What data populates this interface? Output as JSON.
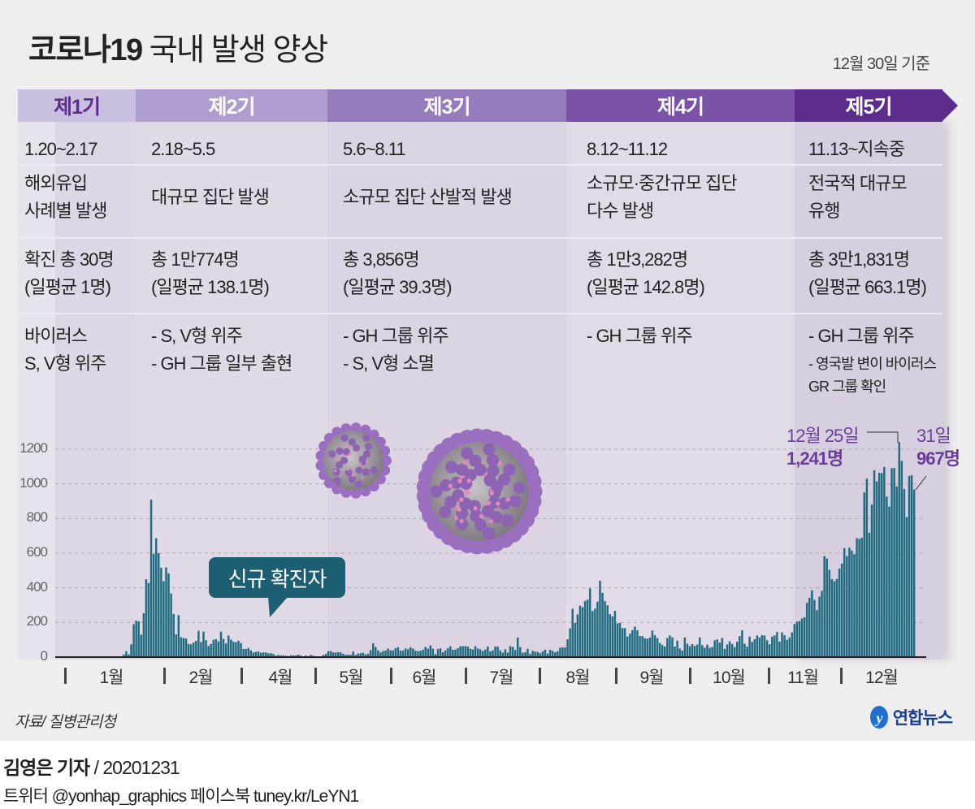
{
  "header": {
    "title_bold": "코로나19",
    "title_rest": " 국내 발생 양상",
    "basis": "12월 30일 기준"
  },
  "colors": {
    "phase1": "#cbbfe0",
    "phase2": "#b09dcf",
    "phase3": "#977cbd",
    "phase4": "#7a53a8",
    "phase5": "#5d2d8d",
    "bar": "#1f6b80",
    "annotation": "#6a3d9a",
    "callout": "#1c5e72"
  },
  "phases": [
    {
      "label": "제1기",
      "period": "1.20~2.17",
      "desc": [
        "해외유입",
        "사례별 발생"
      ],
      "total": "확진 총 30명",
      "avg": "(일평균 1명)",
      "virus": [
        "바이러스",
        "S, V형 위주"
      ]
    },
    {
      "label": "제2기",
      "period": "2.18~5.5",
      "desc": [
        "대규모 집단 발생"
      ],
      "total": "총 1만774명",
      "avg": "(일평균 138.1명)",
      "virus": [
        "- S, V형 위주",
        "- GH 그룹 일부 출현"
      ]
    },
    {
      "label": "제3기",
      "period": "5.6~8.11",
      "desc": [
        "소규모 집단 산발적 발생"
      ],
      "total": "총 3,856명",
      "avg": "(일평균 39.3명)",
      "virus": [
        "- GH 그룹 위주",
        "- S, V형 소멸"
      ]
    },
    {
      "label": "제4기",
      "period": "8.12~11.12",
      "desc": [
        "소규모·중간규모 집단",
        "다수 발생"
      ],
      "total": "총 1만3,282명",
      "avg": "(일평균 142.8명)",
      "virus": [
        "- GH 그룹 위주"
      ]
    },
    {
      "label": "제5기",
      "period": "11.13~지속중",
      "desc": [
        "전국적 대규모",
        "유행"
      ],
      "total": "총 3만1,831명",
      "avg": "(일평균 663.1명)",
      "virus": [
        "- GH 그룹 위주"
      ],
      "virus_note": [
        "- 영국발 변이 바이러스",
        "GR 그룹 확인"
      ]
    }
  ],
  "chart_data": {
    "type": "bar",
    "title": "신규 확진자",
    "ylim": [
      0,
      1300
    ],
    "yticks": [
      "0",
      "200",
      "400",
      "600",
      "800",
      "1000",
      "1200"
    ],
    "month_labels": [
      "1월",
      "2월",
      "4월",
      "5월",
      "6월",
      "7월",
      "8월",
      "9월",
      "10월",
      "11월",
      "12월"
    ],
    "grid": true,
    "annotations": [
      {
        "date": "12월 25일",
        "value": "1,241명"
      },
      {
        "date": "31일",
        "value": "967명"
      }
    ],
    "values": [
      1,
      15,
      34,
      16,
      74,
      190,
      210,
      207,
      130,
      253,
      449,
      427,
      909,
      595,
      686,
      600,
      516,
      438,
      518,
      483,
      367,
      248,
      131,
      242,
      114,
      110,
      107,
      76,
      74,
      84,
      93,
      152,
      87,
      147,
      98,
      64,
      76,
      100,
      104,
      91,
      146,
      105,
      78,
      125,
      101,
      89,
      86,
      94,
      81,
      47,
      47,
      53,
      39,
      27,
      30,
      32,
      25,
      27,
      27,
      22,
      22,
      18,
      8,
      13,
      9,
      11,
      8,
      6,
      10,
      10,
      10,
      14,
      9,
      4,
      9,
      6,
      13,
      8,
      3,
      2,
      4,
      12,
      18,
      34,
      35,
      27,
      26,
      29,
      27,
      19,
      13,
      15,
      13,
      32,
      12,
      20,
      23,
      25,
      16,
      19,
      40,
      79,
      58,
      39,
      27,
      35,
      38,
      49,
      39,
      39,
      51,
      57,
      38,
      38,
      50,
      45,
      56,
      49,
      37,
      34,
      37,
      43,
      59,
      49,
      67,
      48,
      17,
      46,
      51,
      28,
      39,
      51,
      62,
      42,
      43,
      51,
      63,
      63,
      63,
      61,
      48,
      44,
      63,
      50,
      45,
      35,
      44,
      62,
      33,
      39,
      61,
      60,
      39,
      26,
      45,
      26,
      63,
      59,
      41,
      113,
      58,
      25,
      28,
      48,
      18,
      36,
      31,
      30,
      23,
      33,
      43,
      20,
      43,
      36,
      28,
      34,
      54,
      56,
      56,
      103,
      166,
      279,
      197,
      246,
      297,
      288,
      324,
      332,
      397,
      266,
      280,
      320,
      441,
      371,
      323,
      299,
      248,
      235,
      267,
      195,
      198,
      168,
      167,
      119,
      136,
      156,
      176,
      155,
      121,
      121,
      109,
      106,
      113,
      153,
      126,
      110,
      82,
      70,
      61,
      110,
      125,
      114,
      61,
      95,
      50,
      38,
      113,
      77,
      63,
      75,
      64,
      73,
      114,
      69,
      54,
      72,
      54,
      58,
      97,
      102,
      84,
      110,
      47,
      73,
      91,
      76,
      58,
      89,
      121,
      155,
      77,
      61,
      119,
      88,
      103,
      125,
      114,
      127,
      124,
      97,
      75,
      118,
      125,
      145,
      89,
      143,
      126,
      100,
      113,
      143,
      191,
      205,
      208,
      223,
      230,
      313,
      343,
      386,
      330,
      271,
      349,
      382,
      583,
      569,
      504,
      450,
      438,
      451,
      511,
      540,
      629,
      583,
      631,
      615,
      594,
      686,
      682,
      689,
      950,
      1030,
      718,
      880,
      1078,
      1014,
      1064,
      1062,
      1097,
      926,
      869,
      1090,
      1092,
      985,
      1241,
      1132,
      970,
      808,
      1046,
      1050,
      967
    ]
  },
  "footer": {
    "source": "자료/ 질병관리청",
    "logo": "연합뉴스",
    "reporter": "김영은 기자",
    "date": " / 20201231",
    "social": "트위터 @yonhap_graphics  페이스북 tuney.kr/LeYN1"
  }
}
